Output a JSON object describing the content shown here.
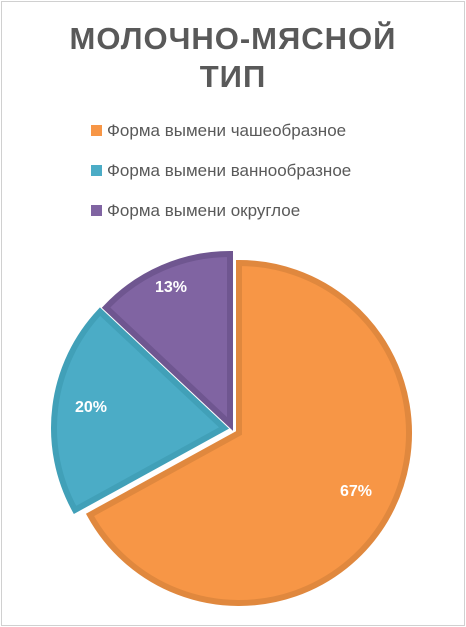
{
  "chart_data": {
    "type": "pie",
    "title_lines": [
      "МОЛОЧНО-МЯСНОЙ",
      "ТИП"
    ],
    "title": "МОЛОЧНО-МЯСНОЙ ТИП",
    "legend_position": "top",
    "categories": [
      "Форма вымени чашеобразное",
      "Форма вымени ваннообразное",
      "Форма вымени округлое"
    ],
    "values": [
      67,
      20,
      13
    ],
    "value_labels": [
      "67%",
      "20%",
      "13%"
    ],
    "colors": [
      "#f79646",
      "#4bacc6",
      "#8064a2"
    ],
    "border_colors": [
      "#e0883e",
      "#41a0b8",
      "#6f5690"
    ]
  }
}
